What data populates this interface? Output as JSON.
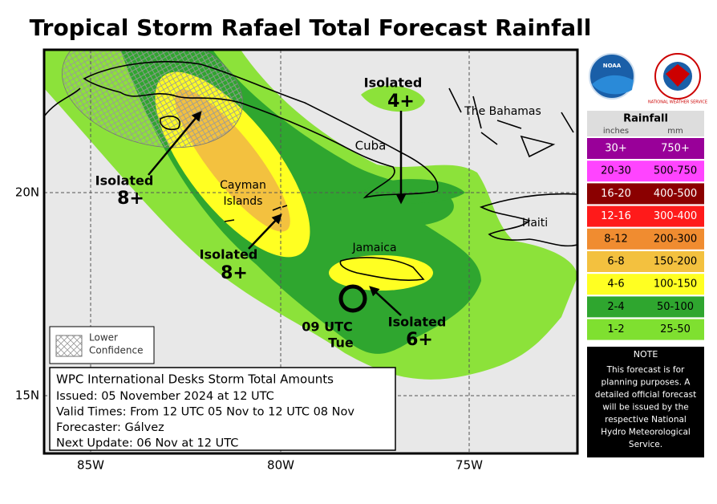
{
  "header": {
    "title": "Tropical Storm Rafael Total Forecast Rainfall"
  },
  "map": {
    "lat_labels": [
      "20N",
      "15N"
    ],
    "lon_labels": [
      "85W",
      "80W",
      "75W"
    ],
    "places": {
      "cuba": "Cuba",
      "bahamas": "The Bahamas",
      "cayman": [
        "Cayman",
        "Islands"
      ],
      "jamaica": "Jamaica",
      "haiti": "Haiti"
    },
    "annotations": [
      {
        "label": "Isolated",
        "amount": "4+"
      },
      {
        "label": "Isolated",
        "amount": "8+"
      },
      {
        "label": "Isolated",
        "amount": "8+"
      },
      {
        "label": "Isolated",
        "amount": "6+"
      }
    ],
    "storm_position": [
      "09 UTC",
      "Tue"
    ],
    "hatch_legend": [
      "Lower",
      "Confidence"
    ]
  },
  "info_box": {
    "title": "WPC International Desks Storm Total Amounts",
    "lines": [
      "Issued:  05 November 2024 at 12 UTC",
      "Valid Times:  From 12 UTC 05 Nov to 12 UTC 08 Nov",
      "Forecaster: Gálvez",
      "Next Update: 06 Nov at 12 UTC"
    ]
  },
  "legend": {
    "title": "Rainfall",
    "units": [
      "inches",
      "mm"
    ],
    "rows": [
      {
        "inches": "30+",
        "mm": "750+",
        "color": "#990099"
      },
      {
        "inches": "20-30",
        "mm": "500-750",
        "color": "#ff44ff"
      },
      {
        "inches": "16-20",
        "mm": "400-500",
        "color": "#8b0000"
      },
      {
        "inches": "12-16",
        "mm": "300-400",
        "color": "#ff1a1a"
      },
      {
        "inches": "8-12",
        "mm": "200-300",
        "color": "#f08c30"
      },
      {
        "inches": "6-8",
        "mm": "150-200",
        "color": "#f3c13f"
      },
      {
        "inches": "4-6",
        "mm": "100-150",
        "color": "#ffff22"
      },
      {
        "inches": "2-4",
        "mm": "50-100",
        "color": "#2fa62f"
      },
      {
        "inches": "1-2",
        "mm": "25-50",
        "color": "#7fe030"
      }
    ]
  },
  "note": {
    "title": "NOTE",
    "lines": [
      "This forecast is for",
      "planning purposes. A",
      "detailed official forecast",
      "will be issued by the",
      "respective National",
      "Hydro Meteorological",
      "Service."
    ]
  },
  "logos": {
    "noaa": "NOAA",
    "nws": "NATIONAL WEATHER SERVICE"
  }
}
